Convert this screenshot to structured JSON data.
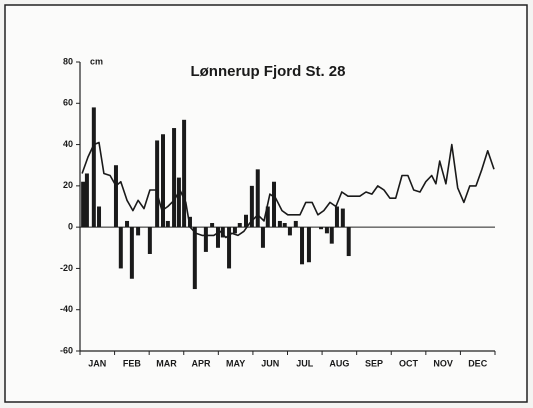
{
  "chart_data": {
    "type": "bar",
    "title": "Lønnerup Fjord St. 28",
    "y_unit": "cm",
    "categories": [
      "JAN",
      "FEB",
      "MAR",
      "APR",
      "MAY",
      "JUN",
      "JUL",
      "AUG",
      "SEP",
      "OCT",
      "NOV",
      "DEC"
    ],
    "xlim": [
      0,
      12
    ],
    "ylim": [
      -60,
      80
    ],
    "yticks": [
      -60,
      -40,
      -20,
      0,
      20,
      40,
      60,
      80
    ],
    "color": "#1a1a1a",
    "series": [
      {
        "type": "bar",
        "x": [
          0.09,
          0.2,
          0.4,
          0.55,
          1.04,
          1.18,
          1.36,
          1.5,
          1.68,
          2.02,
          2.23,
          2.4,
          2.54,
          2.72,
          2.86,
          3.01,
          3.18,
          3.32,
          3.64,
          3.82,
          3.99,
          4.13,
          4.31,
          4.48,
          4.62,
          4.8,
          4.97,
          5.14,
          5.29,
          5.43,
          5.61,
          5.78,
          5.92,
          6.07,
          6.24,
          6.42,
          6.62,
          6.97,
          7.14,
          7.28,
          7.43,
          7.6,
          7.77
        ],
        "values": [
          22,
          26,
          58,
          10,
          30,
          -20,
          3,
          -25,
          -4,
          -13,
          42,
          45,
          3,
          48,
          24,
          52,
          5,
          -30,
          -12,
          2,
          -10,
          -5,
          -20,
          -3,
          2,
          6,
          20,
          28,
          -10,
          10,
          22,
          3,
          2,
          -4,
          3,
          -18,
          -17,
          -1,
          -3,
          -8,
          10,
          9,
          -14
        ]
      },
      {
        "type": "line",
        "x": [
          0.06,
          0.23,
          0.4,
          0.55,
          0.69,
          0.87,
          1.04,
          1.18,
          1.36,
          1.53,
          1.68,
          1.85,
          2.02,
          2.2,
          2.37,
          2.54,
          2.72,
          2.89,
          3.06,
          3.18,
          3.35,
          3.53,
          3.7,
          3.87,
          4.05,
          4.22,
          4.39,
          4.57,
          4.74,
          4.91,
          5.14,
          5.32,
          5.49,
          5.66,
          5.84,
          6.01,
          6.18,
          6.36,
          6.53,
          6.71,
          6.88,
          7.05,
          7.23,
          7.4,
          7.57,
          7.75,
          7.92,
          8.09,
          8.27,
          8.44,
          8.61,
          8.79,
          8.96,
          9.13,
          9.31,
          9.48,
          9.65,
          9.83,
          10.0,
          10.17,
          10.29,
          10.4,
          10.58,
          10.75,
          10.92,
          11.1,
          11.27,
          11.45,
          11.62,
          11.79,
          11.97
        ],
        "values": [
          26,
          34,
          40,
          41,
          26,
          25,
          20,
          22,
          13,
          8,
          13,
          9,
          18,
          18,
          8,
          10,
          13,
          18,
          12,
          0,
          -3,
          -4,
          -4,
          -4,
          -2,
          -5,
          -3,
          -4,
          -2,
          2,
          6,
          3,
          16,
          14,
          8,
          6,
          6,
          6,
          12,
          12,
          6,
          8,
          12,
          10,
          17,
          15,
          15,
          15,
          17,
          16,
          20,
          18,
          14,
          14,
          25,
          25,
          18,
          17,
          22,
          25,
          21,
          32,
          21,
          40,
          19,
          12,
          20,
          20,
          28,
          37,
          28
        ]
      }
    ]
  }
}
